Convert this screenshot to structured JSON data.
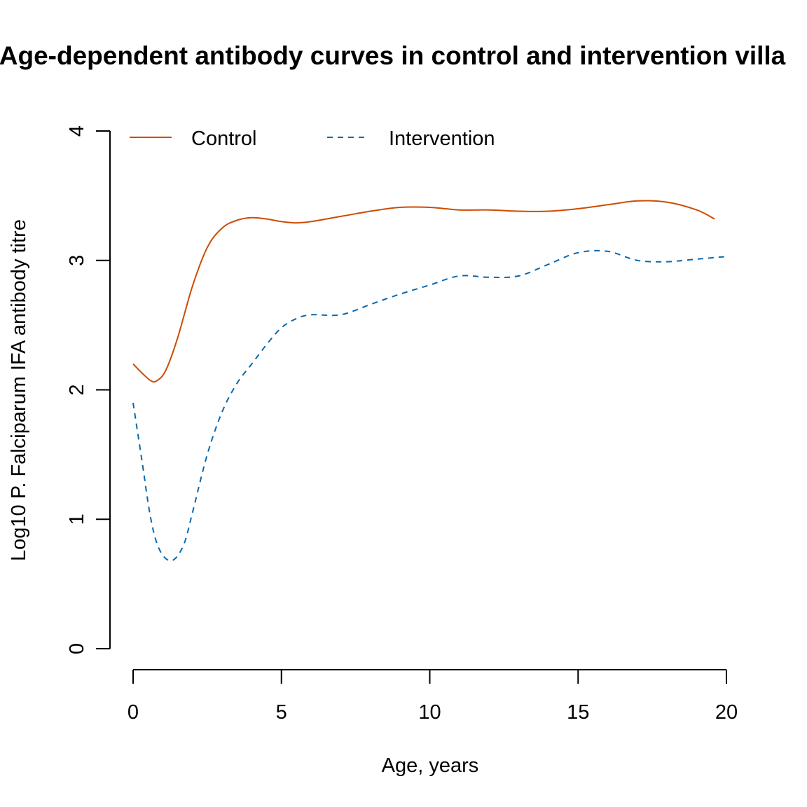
{
  "chart_data": {
    "type": "line",
    "title": "Age-dependent antibody curves in control and intervention villa",
    "xlabel": "Age, years",
    "ylabel": "Log10 P. Falciparum IFA antibody titre",
    "xlim": [
      0,
      20
    ],
    "ylim": [
      0,
      4
    ],
    "xticks": [
      0,
      5,
      10,
      15,
      20
    ],
    "yticks": [
      0,
      1,
      2,
      3,
      4
    ],
    "grid": false,
    "legend_position": "top-left",
    "series": [
      {
        "name": "Control",
        "color": "#CC4C02",
        "dash": "solid",
        "x": [
          0,
          0.3,
          0.6,
          0.8,
          1.1,
          1.5,
          2.0,
          2.5,
          3.0,
          3.5,
          4.0,
          4.5,
          5.0,
          5.5,
          6.0,
          7.0,
          8.0,
          9.0,
          10.0,
          11.0,
          12.0,
          13.0,
          14.0,
          15.0,
          16.0,
          17.0,
          18.0,
          19.0,
          19.6
        ],
        "y": [
          2.2,
          2.13,
          2.07,
          2.07,
          2.15,
          2.4,
          2.8,
          3.1,
          3.25,
          3.31,
          3.33,
          3.32,
          3.3,
          3.29,
          3.3,
          3.34,
          3.38,
          3.41,
          3.41,
          3.39,
          3.39,
          3.38,
          3.38,
          3.4,
          3.43,
          3.46,
          3.45,
          3.39,
          3.32
        ]
      },
      {
        "name": "Intervention",
        "color": "#0868AC",
        "dash": "dashed",
        "x": [
          0,
          0.3,
          0.6,
          0.9,
          1.3,
          1.7,
          2.0,
          2.5,
          3.0,
          3.5,
          4.0,
          4.5,
          5.0,
          5.5,
          6.0,
          7.0,
          8.0,
          9.0,
          10.0,
          11.0,
          12.0,
          13.0,
          14.0,
          15.0,
          16.0,
          17.0,
          18.0,
          19.0,
          20.0
        ],
        "y": [
          1.9,
          1.45,
          1.0,
          0.76,
          0.68,
          0.8,
          1.05,
          1.5,
          1.83,
          2.05,
          2.2,
          2.35,
          2.48,
          2.55,
          2.58,
          2.58,
          2.66,
          2.74,
          2.81,
          2.88,
          2.87,
          2.88,
          2.97,
          3.06,
          3.07,
          3.0,
          2.99,
          3.01,
          3.03
        ]
      }
    ]
  }
}
